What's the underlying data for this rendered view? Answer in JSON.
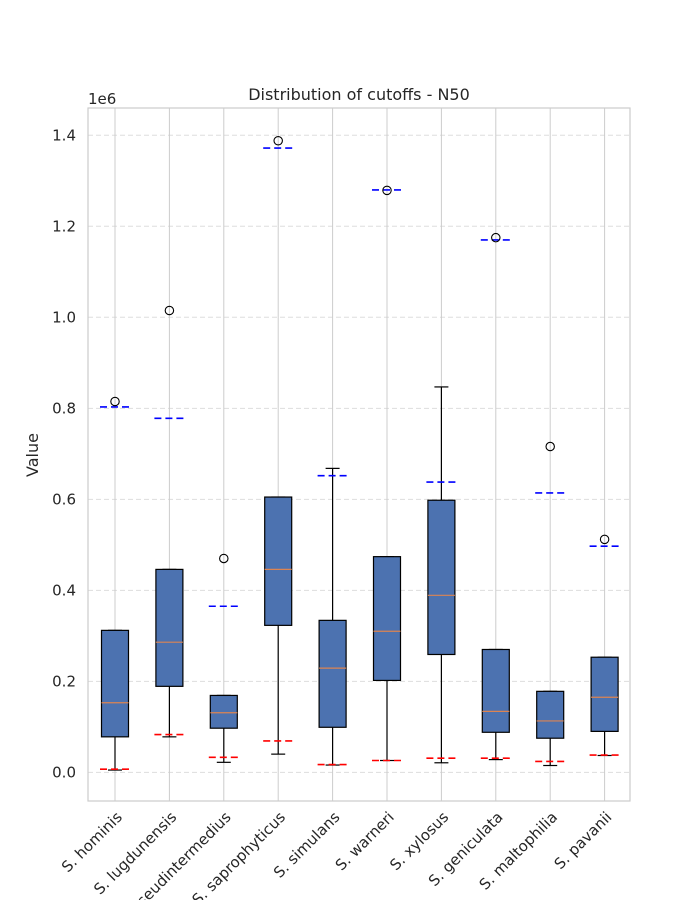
{
  "chart_data": {
    "type": "box",
    "title": "Distribution of cutoffs - N50",
    "xlabel": "",
    "ylabel": "Value",
    "offset_label": "1e6",
    "ylim": [
      -0.063,
      1.46
    ],
    "yticks": [
      0.0,
      0.2,
      0.4,
      0.6,
      0.8,
      1.0,
      1.2,
      1.4
    ],
    "ytick_labels": [
      "0.0",
      "0.2",
      "0.4",
      "0.6",
      "0.8",
      "1.0",
      "1.2",
      "1.4"
    ],
    "grid": true,
    "categories": [
      "S. hominis",
      "S. lugdunensis",
      "S. pseudintermedius",
      "S. saprophyticus",
      "S. simulans",
      "S. warneri",
      "S. xylosus",
      "S. geniculata",
      "S. maltophilia",
      "S. pavanii"
    ],
    "boxes": [
      {
        "whislo": 0.005,
        "q1": 0.078,
        "med": 0.153,
        "q3": 0.312,
        "whishi": 0.312,
        "fliers": [
          0.815
        ],
        "low_cutoff": 0.007,
        "high_cutoff": 0.803
      },
      {
        "whislo": 0.078,
        "q1": 0.189,
        "med": 0.286,
        "q3": 0.446,
        "whishi": 0.446,
        "fliers": [
          1.015
        ],
        "low_cutoff": 0.083,
        "high_cutoff": 0.778
      },
      {
        "whislo": 0.022,
        "q1": 0.097,
        "med": 0.131,
        "q3": 0.169,
        "whishi": 0.169,
        "fliers": [
          0.47
        ],
        "low_cutoff": 0.033,
        "high_cutoff": 0.365
      },
      {
        "whislo": 0.04,
        "q1": 0.323,
        "med": 0.446,
        "q3": 0.605,
        "whishi": 0.605,
        "fliers": [
          1.388
        ],
        "low_cutoff": 0.069,
        "high_cutoff": 1.372
      },
      {
        "whislo": 0.016,
        "q1": 0.099,
        "med": 0.229,
        "q3": 0.334,
        "whishi": 0.668,
        "fliers": [],
        "low_cutoff": 0.017,
        "high_cutoff": 0.652
      },
      {
        "whislo": 0.026,
        "q1": 0.202,
        "med": 0.31,
        "q3": 0.474,
        "whishi": 0.474,
        "fliers": [
          1.279
        ],
        "low_cutoff": 0.026,
        "high_cutoff": 1.28
      },
      {
        "whislo": 0.021,
        "q1": 0.259,
        "med": 0.389,
        "q3": 0.598,
        "whishi": 0.847,
        "fliers": [],
        "low_cutoff": 0.031,
        "high_cutoff": 0.638
      },
      {
        "whislo": 0.028,
        "q1": 0.088,
        "med": 0.134,
        "q3": 0.27,
        "whishi": 0.27,
        "fliers": [
          1.175
        ],
        "low_cutoff": 0.031,
        "high_cutoff": 1.17
      },
      {
        "whislo": 0.015,
        "q1": 0.075,
        "med": 0.113,
        "q3": 0.178,
        "whishi": 0.178,
        "fliers": [
          0.716
        ],
        "low_cutoff": 0.024,
        "high_cutoff": 0.614
      },
      {
        "whislo": 0.037,
        "q1": 0.09,
        "med": 0.165,
        "q3": 0.253,
        "whishi": 0.253,
        "fliers": [
          0.512
        ],
        "low_cutoff": 0.038,
        "high_cutoff": 0.497
      }
    ],
    "colors": {
      "box_fill": "#4c72b0",
      "box_edge": "#000000",
      "median": "#dd8452",
      "low_cutoff": "#ff0000",
      "high_cutoff": "#0000ff",
      "grid": "#dddddd",
      "vgrid": "#cccccc",
      "spine": "#cccccc"
    }
  }
}
